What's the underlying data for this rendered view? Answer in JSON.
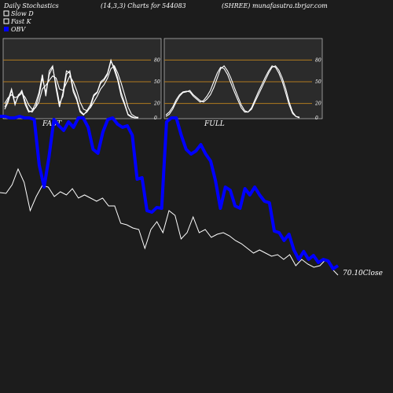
{
  "header": {
    "title": "Daily Stochastics",
    "params": "(14,3,3) Charts for 544083",
    "symbol": "(SHREE) munafasutra.tbrjar.com"
  },
  "legend": [
    {
      "label": "Slow  D",
      "color": "#ffffff"
    },
    {
      "label": "Fast K",
      "color": "#ffffff"
    },
    {
      "label": "OBV",
      "color": "#0000ff"
    }
  ],
  "colors": {
    "background": "#1c1c1c",
    "panel": "#2b2b2b",
    "level_line": "#b07a1f",
    "obv": "#0000ff",
    "price": "#ffffff",
    "stoch": "#ffffff"
  },
  "panels": [
    {
      "label": "FAST",
      "ticks": [
        "80",
        "50",
        "20",
        "0"
      ]
    },
    {
      "label": "FULL",
      "ticks": [
        "80",
        "50",
        "20",
        "0"
      ]
    }
  ],
  "chart_data": [
    {
      "type": "line",
      "levels": [
        80,
        50,
        20
      ],
      "ylim": [
        0,
        100
      ],
      "series": [
        {
          "values": [
            15,
            25,
            40,
            20,
            30,
            38,
            22,
            10,
            8,
            15,
            30,
            55,
            35,
            60,
            70,
            45,
            20,
            30,
            60,
            65,
            40,
            28,
            10,
            5,
            8,
            15,
            30,
            35,
            48,
            52,
            60,
            78,
            70,
            55,
            35,
            20,
            5,
            2,
            0,
            0
          ]
        },
        {
          "values": [
            20,
            28,
            32,
            28,
            30,
            34,
            28,
            18,
            12,
            14,
            22,
            40,
            45,
            52,
            58,
            55,
            40,
            38,
            48,
            58,
            50,
            38,
            22,
            12,
            10,
            14,
            22,
            30,
            40,
            46,
            55,
            68,
            72,
            62,
            48,
            32,
            15,
            5,
            2,
            0
          ]
        },
        {
          "values": [
            12,
            22,
            38,
            18,
            32,
            36,
            18,
            8,
            10,
            20,
            35,
            60,
            30,
            65,
            72,
            40,
            15,
            35,
            65,
            62,
            36,
            25,
            8,
            4,
            10,
            18,
            32,
            36,
            50,
            54,
            62,
            80,
            66,
            52,
            30,
            18,
            4,
            1,
            0,
            1
          ]
        }
      ]
    },
    {
      "type": "line",
      "levels": [
        80,
        50,
        20
      ],
      "ylim": [
        0,
        100
      ],
      "series": [
        {
          "values": [
            2,
            5,
            12,
            22,
            30,
            35,
            36,
            38,
            32,
            28,
            24,
            22,
            26,
            32,
            42,
            55,
            68,
            72,
            65,
            55,
            42,
            30,
            18,
            10,
            8,
            12,
            22,
            32,
            42,
            52,
            62,
            70,
            72,
            66,
            55,
            40,
            22,
            8,
            2,
            0
          ]
        },
        {
          "values": [
            4,
            8,
            15,
            25,
            32,
            36,
            37,
            36,
            30,
            26,
            22,
            24,
            30,
            38,
            50,
            62,
            70,
            68,
            60,
            48,
            36,
            25,
            14,
            8,
            8,
            14,
            25,
            36,
            46,
            56,
            65,
            72,
            70,
            62,
            50,
            34,
            18,
            6,
            2,
            1
          ]
        }
      ]
    },
    {
      "type": "line",
      "title": "",
      "series": [
        {
          "name": "OBV",
          "values": [
            148,
            148,
            150,
            150,
            148,
            150,
            150,
            152,
            210,
            238,
            200,
            152,
            160,
            166,
            155,
            162,
            150,
            150,
            162,
            190,
            195,
            168,
            152,
            150,
            158,
            162,
            160,
            172,
            228,
            226,
            268,
            270,
            264,
            265,
            155,
            150,
            150,
            172,
            190,
            196,
            192,
            184,
            196,
            205,
            230,
            265,
            238,
            242,
            262,
            265,
            240,
            248,
            238,
            248,
            256,
            258,
            294,
            296,
            306,
            298,
            318,
            330,
            320,
            330,
            325,
            334,
            330,
            332,
            342,
            338
          ]
        },
        {
          "name": "Close",
          "values": [
            245,
            246,
            235,
            215,
            232,
            268,
            250,
            236,
            238,
            250,
            244,
            248,
            240,
            252,
            248,
            252,
            256,
            252,
            262,
            262,
            284,
            286,
            290,
            292,
            316,
            292,
            282,
            296,
            268,
            274,
            304,
            296,
            276,
            296,
            292,
            302,
            298,
            296,
            300,
            306,
            310,
            316,
            322,
            318,
            322,
            326,
            324,
            330,
            324,
            338,
            330,
            336,
            340,
            338,
            330,
            342,
            350
          ]
        }
      ],
      "annotations": [
        {
          "text": "70.10Close"
        }
      ]
    }
  ]
}
